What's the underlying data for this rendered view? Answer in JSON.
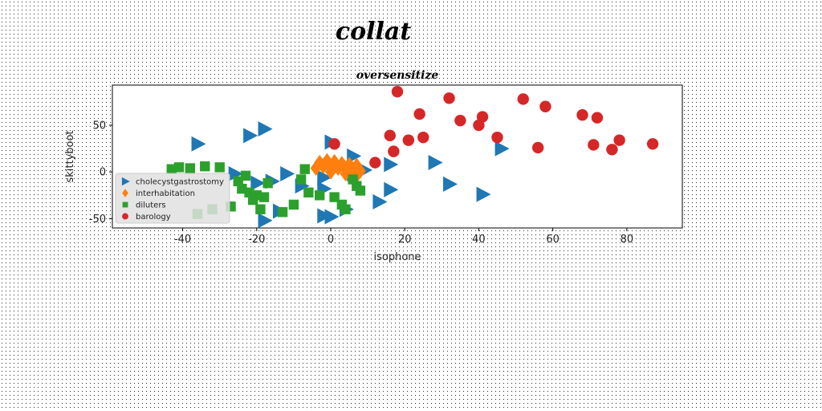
{
  "figure_title": "collat",
  "chart_data": {
    "type": "scatter",
    "title": "oversensitize",
    "xlabel": "isophone",
    "ylabel": "skittyboot",
    "xlim": [
      -59,
      95
    ],
    "ylim": [
      -60,
      93
    ],
    "xticks": [
      -40,
      -20,
      0,
      20,
      40,
      60,
      80
    ],
    "yticks": [
      -50,
      0,
      50
    ],
    "grid": false,
    "legend_position": "lower-left",
    "series": [
      {
        "name": "cholecystgastrostomy",
        "marker": "triangle-right",
        "color": "#1f77b4",
        "x": [
          -36,
          -22,
          -18,
          0,
          6,
          9,
          16,
          16,
          28,
          32,
          41,
          46,
          -12,
          -16,
          -20,
          -8,
          -2,
          -2,
          0,
          4,
          6,
          13,
          -26,
          -18,
          -14,
          -2
        ],
        "y": [
          30,
          39,
          46,
          32,
          17,
          2,
          8,
          -19,
          10,
          -13,
          -24,
          25,
          -2,
          -10,
          -12,
          -15,
          -18,
          -47,
          -48,
          -40,
          -2,
          -32,
          -2,
          -52,
          -42,
          -6
        ]
      },
      {
        "name": "interhabitation",
        "marker": "diamond",
        "color": "#ff7f0e",
        "x": [
          -3,
          -1,
          1,
          3,
          5,
          7,
          -2,
          0,
          2,
          4,
          6,
          8,
          -4,
          0,
          4,
          7
        ],
        "y": [
          10,
          12,
          11,
          9,
          8,
          7,
          6,
          5,
          4,
          3,
          2,
          1,
          4,
          0,
          -2,
          -4
        ]
      },
      {
        "name": "diluters",
        "marker": "square",
        "color": "#2ca02c",
        "x": [
          -43,
          -41,
          -38,
          -34,
          -30,
          -24,
          -22,
          -20,
          -18,
          -19,
          -21,
          -17,
          -13,
          -10,
          -8,
          -7,
          -6,
          -3,
          1,
          3,
          4,
          6,
          7,
          8,
          -27,
          -25,
          -23,
          -36,
          -32
        ],
        "y": [
          3,
          5,
          4,
          6,
          5,
          -18,
          -22,
          -25,
          -27,
          -40,
          -30,
          -12,
          -43,
          -35,
          -8,
          3,
          -22,
          -25,
          -27,
          -35,
          -40,
          -8,
          -15,
          -20,
          -37,
          -10,
          -4,
          -45,
          -40
        ]
      },
      {
        "name": "barology",
        "marker": "circle",
        "color": "#d62728",
        "x": [
          18,
          32,
          24,
          41,
          52,
          58,
          68,
          72,
          35,
          40,
          16,
          17,
          21,
          25,
          12,
          1,
          45,
          56,
          71,
          76,
          78,
          87
        ],
        "y": [
          86,
          79,
          62,
          59,
          78,
          70,
          61,
          58,
          55,
          50,
          39,
          22,
          34,
          37,
          10,
          30,
          37,
          26,
          29,
          24,
          34,
          30
        ]
      }
    ]
  }
}
